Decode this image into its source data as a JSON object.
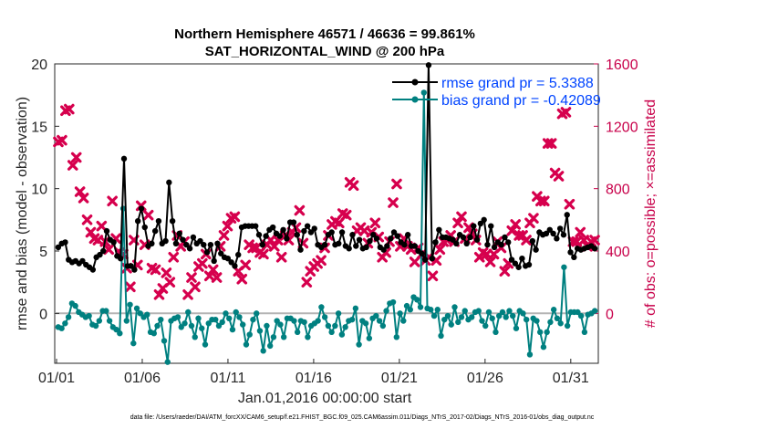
{
  "chart_data": {
    "type": "line",
    "title_line1": "Northern Hemisphere 46571 / 46636 = 99.861%",
    "title_line2": "SAT_HORIZONTAL_WIND @ 200 hPa",
    "ylabel_left": "rmse and bias (model - observation)",
    "ylabel_right": "# of obs: o=possible; ×=assimilated",
    "xlabel": "Jan.01,2016 00:00:00 start",
    "footnote": "data file: /Users/raeder/DAI/ATM_forcXX/CAM6_setup/f.e21.FHIST_BGC.f09_025.CAM6assim.011/Diags_NTrS_2017-02/Diags_NTrS_2016-01/obs_diag_output.nc",
    "x_range": [
      0,
      31.5
    ],
    "ylim_left": [
      -4,
      20
    ],
    "ylim_right": [
      -320,
      1600
    ],
    "left_ticks": [
      "-",
      "0",
      "5",
      "10",
      "15",
      "20"
    ],
    "left_tick_values": [
      0,
      5,
      10,
      15,
      20
    ],
    "right_tick_labels": [
      "0",
      "400",
      "800",
      "1200",
      "1600"
    ],
    "right_tick_values": [
      0,
      400,
      800,
      1200,
      1600
    ],
    "x_tick_labels": [
      "01/01",
      "01/06",
      "01/11",
      "01/16",
      "01/21",
      "01/26",
      "01/31"
    ],
    "x_tick_values": [
      0,
      5,
      10,
      15,
      20,
      25,
      30
    ],
    "colors": {
      "rmse": "#000000",
      "bias": "#008080",
      "obs": "#d6004d",
      "zero": "#b4b4b4"
    },
    "series": [
      {
        "name": "rmse grand pr = 5.3388",
        "values": [
          5.3,
          5.6,
          5.7,
          4.3,
          4.1,
          4.2,
          4.0,
          4.2,
          3.9,
          3.7,
          3.5,
          4.5,
          4.7,
          5.0,
          6.6,
          5.9,
          5.7,
          4.6,
          4.4,
          12.4,
          3.8,
          3.8,
          3.5,
          7.4,
          8.4,
          6.9,
          5.4,
          5.6,
          6.6,
          7.4,
          5.6,
          5.8,
          10.5,
          7.4,
          5.6,
          6.4,
          5.9,
          5.5,
          5.2,
          6.1,
          5.6,
          5.8,
          5.5,
          4.9,
          5.5,
          4.2,
          5.6,
          4.8,
          4.5,
          4.4,
          4.1,
          3.8,
          4.7,
          6.9,
          7.0,
          7.0,
          7.0,
          7.0,
          6.3,
          5.5,
          6.2,
          6.7,
          6.9,
          6.4,
          6.2,
          6.7,
          6.0,
          7.3,
          7.3,
          6.3,
          5.1,
          6.6,
          7.0,
          6.5,
          6.8,
          5.5,
          5.3,
          5.5,
          6.3,
          6.5,
          5.5,
          5.6,
          6.5,
          5.4,
          5.2,
          6.3,
          5.4,
          5.9,
          5.2,
          5.3,
          5.8,
          6.3,
          6.0,
          5.3,
          5.1,
          5.4,
          6.0,
          6.5,
          6.2,
          5.7,
          5.5,
          6.3,
          5.4,
          5.4,
          5.0,
          4.8,
          4.3,
          19.9,
          4.4,
          5.7,
          6.7,
          6.1,
          6.1,
          6.0,
          5.9,
          5.6,
          6.3,
          6.1,
          5.6,
          6.1,
          7.0,
          5.9,
          7.2,
          7.5,
          5.5,
          7.0,
          5.3,
          5.7,
          5.5,
          6.1,
          5.7,
          4.3,
          4.0,
          3.7,
          4.4,
          3.8,
          3.9,
          5.8,
          5.1,
          6.5,
          6.3,
          6.4,
          6.7,
          6.4,
          6.0,
          6.8,
          6.3,
          7.9,
          4.9,
          4.5,
          5.2,
          5.1,
          5.2,
          5.3,
          5.4,
          5.2
        ],
        "bias_note": "bias series below"
      },
      {
        "name": "bias grand pr = -0.42089",
        "values": [
          -1.1,
          -1.2,
          -0.8,
          -0.3,
          0.8,
          0.6,
          0.1,
          -0.1,
          -0.3,
          -0.2,
          -0.9,
          -1.0,
          -0.6,
          0.2,
          0.2,
          -0.6,
          -1.1,
          -1.3,
          -1.6,
          8.4,
          -0.6,
          0.7,
          -2.4,
          0.4,
          0.0,
          -0.3,
          -0.1,
          -1.5,
          -1.6,
          -1.0,
          -0.5,
          -2.2,
          -3.9,
          -0.6,
          -0.4,
          -0.3,
          -1.1,
          -0.8,
          0.1,
          -1.0,
          -1.9,
          -0.4,
          -1.2,
          -2.5,
          -0.8,
          -0.5,
          -0.5,
          -1.0,
          -0.7,
          0.0,
          -0.4,
          -1.3,
          0.1,
          -0.3,
          -0.9,
          -2.5,
          -1.7,
          -0.5,
          0.0,
          -1.4,
          -3.0,
          -1.0,
          -2.6,
          -1.9,
          -0.6,
          -0.9,
          -1.9,
          -0.4,
          -0.4,
          -0.6,
          -1.5,
          -0.6,
          -0.7,
          -1.9,
          -1.0,
          -0.8,
          -0.6,
          0.5,
          -0.3,
          -1.0,
          -1.5,
          -1.0,
          0.0,
          -1.7,
          -1.1,
          -0.6,
          -0.5,
          0.4,
          -2.5,
          -0.6,
          -0.8,
          -2.0,
          -0.4,
          -0.2,
          -0.6,
          -1.0,
          0.2,
          0.8,
          0.9,
          -1.9,
          0.0,
          -0.6,
          0.6,
          0.3,
          1.3,
          1.1,
          0.5,
          17.7,
          0.4,
          0.3,
          -0.2,
          0.3,
          -1.8,
          -0.5,
          -0.2,
          -0.9,
          0.5,
          -0.7,
          -0.3,
          0.2,
          -0.5,
          -0.3,
          0.1,
          0.2,
          -0.6,
          -1.0,
          0.1,
          -0.4,
          -1.5,
          -0.2,
          0.1,
          -0.3,
          0.2,
          -0.2,
          -1.2,
          0.2,
          0.0,
          -0.5,
          -3.3,
          -0.4,
          -0.6,
          -1.5,
          -2.7,
          -1.5,
          -0.7,
          0.3,
          -0.4,
          -0.8,
          3.7,
          -1.0,
          0.1,
          0.1,
          0.1,
          -0.2,
          -1.5,
          -0.1,
          0.0,
          0.2
        ]
      }
    ],
    "obs_assimilated_values": [
      1100,
      1110,
      1300,
      1310,
      950,
      1000,
      780,
      740,
      600,
      520,
      480,
      470,
      560,
      460,
      410,
      720,
      480,
      390,
      380,
      290,
      170,
      470,
      310,
      690,
      440,
      630,
      290,
      280,
      120,
      160,
      260,
      200,
      360,
      500,
      430,
      460,
      120,
      230,
      170,
      300,
      320,
      380,
      240,
      280,
      230,
      430,
      500,
      560,
      610,
      620,
      270,
      220,
      310,
      440,
      420,
      420,
      390,
      380,
      440,
      470,
      430,
      470,
      360,
      500,
      470,
      520,
      550,
      660,
      450,
      200,
      270,
      300,
      320,
      340,
      420,
      500,
      570,
      590,
      580,
      640,
      630,
      840,
      820,
      530,
      550,
      530,
      450,
      520,
      580,
      490,
      360,
      390,
      460,
      710,
      830,
      430,
      480,
      430,
      410,
      330,
      420,
      380,
      340,
      360,
      240,
      340,
      410,
      460,
      470,
      500,
      460,
      580,
      620,
      480,
      550,
      510,
      470,
      360,
      390,
      380,
      330,
      380,
      460,
      420,
      270,
      320,
      530,
      570,
      500,
      500,
      470,
      580,
      610,
      750,
      720,
      720,
      1090,
      1090,
      900,
      880,
      1280,
      1290,
      700,
      460,
      460,
      520,
      470,
      430,
      460,
      470
    ],
    "series_legend_colors": {
      "rmse_text": "#0044ff",
      "bias_text": "#0044ff"
    }
  }
}
